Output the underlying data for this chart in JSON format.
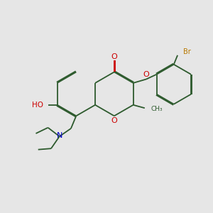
{
  "bg_color": "#e6e6e6",
  "bond_color": "#2d5a2d",
  "o_color": "#cc0000",
  "n_color": "#0000cc",
  "br_color": "#b87800",
  "lw": 1.3,
  "dbo": 0.045,
  "xlim": [
    0,
    10
  ],
  "ylim": [
    0,
    10
  ],
  "fs": 7.0
}
